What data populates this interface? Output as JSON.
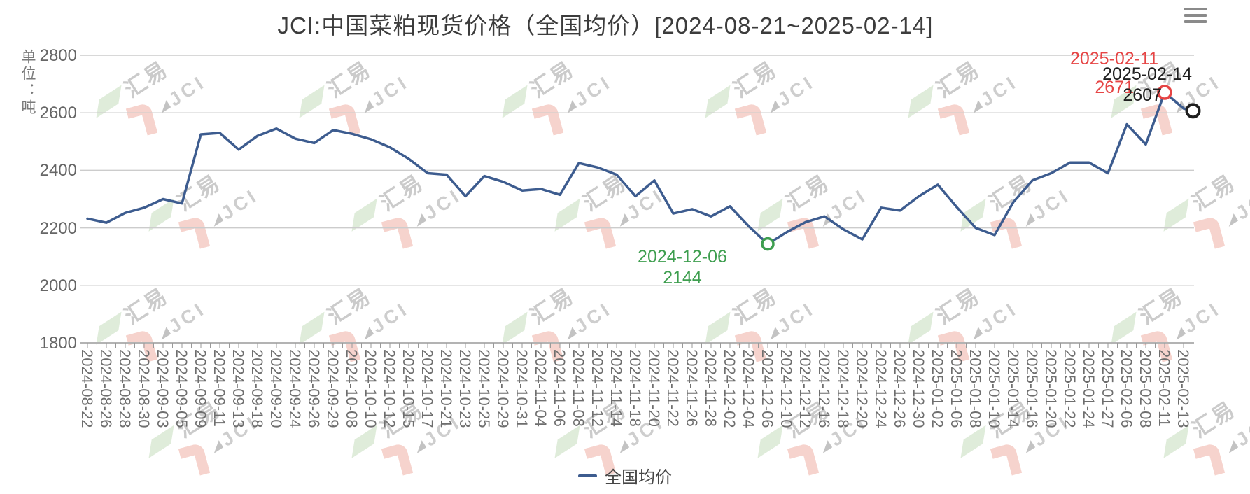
{
  "header": {
    "title": "JCI:中国菜粕现货价格（全国均价）[2024-08-21~2025-02-14]",
    "menu_icon": "hamburger-icon"
  },
  "y_axis": {
    "unit_label": "单位：吨",
    "ticks": [
      2800,
      2600,
      2400,
      2200,
      2000,
      1800
    ]
  },
  "x_axis": {
    "labels": [
      "2024-08-22",
      "2024-08-26",
      "2024-08-28",
      "2024-08-30",
      "2024-09-03",
      "2024-09-05",
      "2024-09-09",
      "2024-09-11",
      "2024-09-13",
      "2024-09-18",
      "2024-09-20",
      "2024-09-24",
      "2024-09-26",
      "2024-09-29",
      "2024-10-08",
      "2024-10-10",
      "2024-10-12",
      "2024-10-15",
      "2024-10-17",
      "2024-10-21",
      "2024-10-23",
      "2024-10-25",
      "2024-10-29",
      "2024-10-31",
      "2024-11-04",
      "2024-11-06",
      "2024-11-08",
      "2024-11-12",
      "2024-11-14",
      "2024-11-18",
      "2024-11-20",
      "2024-11-22",
      "2024-11-26",
      "2024-11-28",
      "2024-12-02",
      "2024-12-04",
      "2024-12-06",
      "2024-12-10",
      "2024-12-12",
      "2024-12-16",
      "2024-12-18",
      "2024-12-20",
      "2024-12-24",
      "2024-12-26",
      "2024-12-30",
      "2025-01-02",
      "2025-01-06",
      "2025-01-08",
      "2025-01-10",
      "2025-01-14",
      "2025-01-16",
      "2025-01-20",
      "2025-01-22",
      "2025-01-24",
      "2025-01-27",
      "2025-02-06",
      "2025-02-08",
      "2025-02-11",
      "2025-02-13"
    ]
  },
  "legend": {
    "items": [
      {
        "label": "全国均价",
        "color": "#3d5c8f"
      }
    ]
  },
  "annotations": {
    "max": {
      "date": "2025-02-11",
      "value": "2671",
      "color": "#e64545"
    },
    "last": {
      "date": "2025-02-14",
      "value": "2607",
      "color": "#1f1f1f"
    },
    "min": {
      "date": "2024-12-06",
      "value": "2144",
      "color": "#3e9e4f"
    }
  },
  "watermark": {
    "text_primary": "汇易",
    "text_secondary": "JCI"
  },
  "colors": {
    "line": "#3d5c8f",
    "grid": "#cccccc",
    "axis": "#b3b3b3",
    "tick": "#9a9a9a"
  },
  "chart_data": {
    "type": "line",
    "title": "JCI:中国菜粕现货价格（全国均价）[2024-08-21~2025-02-14]",
    "ylabel": "单位：吨",
    "ylim": [
      1800,
      2800
    ],
    "y_ticks": [
      1800,
      2000,
      2200,
      2400,
      2600,
      2800
    ],
    "grid": true,
    "legend_position": "bottom",
    "categories": [
      "2024-08-22",
      "2024-08-26",
      "2024-08-28",
      "2024-08-30",
      "2024-09-03",
      "2024-09-05",
      "2024-09-09",
      "2024-09-11",
      "2024-09-13",
      "2024-09-18",
      "2024-09-20",
      "2024-09-24",
      "2024-09-26",
      "2024-09-29",
      "2024-10-08",
      "2024-10-10",
      "2024-10-12",
      "2024-10-15",
      "2024-10-17",
      "2024-10-21",
      "2024-10-23",
      "2024-10-25",
      "2024-10-29",
      "2024-10-31",
      "2024-11-04",
      "2024-11-06",
      "2024-11-08",
      "2024-11-12",
      "2024-11-14",
      "2024-11-18",
      "2024-11-20",
      "2024-11-22",
      "2024-11-26",
      "2024-11-28",
      "2024-12-02",
      "2024-12-04",
      "2024-12-06",
      "2024-12-10",
      "2024-12-12",
      "2024-12-16",
      "2024-12-18",
      "2024-12-20",
      "2024-12-24",
      "2024-12-26",
      "2024-12-30",
      "2025-01-02",
      "2025-01-06",
      "2025-01-08",
      "2025-01-10",
      "2025-01-14",
      "2025-01-16",
      "2025-01-20",
      "2025-01-22",
      "2025-01-24",
      "2025-01-27",
      "2025-02-06",
      "2025-02-08",
      "2025-02-11",
      "2025-02-13"
    ],
    "series": [
      {
        "name": "全国均价",
        "color": "#3d5c8f",
        "values": [
          2232,
          2218,
          2252,
          2270,
          2300,
          2285,
          2525,
          2530,
          2472,
          2520,
          2545,
          2510,
          2495,
          2540,
          2527,
          2508,
          2480,
          2440,
          2390,
          2385,
          2310,
          2380,
          2360,
          2330,
          2335,
          2315,
          2425,
          2410,
          2385,
          2310,
          2365,
          2250,
          2265,
          2240,
          2275,
          2205,
          2144,
          2185,
          2220,
          2240,
          2195,
          2160,
          2270,
          2260,
          2310,
          2350,
          2272,
          2200,
          2175,
          2290,
          2365,
          2390,
          2427,
          2427,
          2390,
          2560,
          2490,
          2671,
          2615
        ],
        "end_point": {
          "date": "2025-02-14",
          "value": 2607
        }
      }
    ],
    "marked_points": [
      {
        "date": "2024-12-06",
        "value": 2144,
        "role": "min",
        "color": "#3e9e4f"
      },
      {
        "date": "2025-02-11",
        "value": 2671,
        "role": "max",
        "color": "#e64545"
      },
      {
        "date": "2025-02-14",
        "value": 2607,
        "role": "last",
        "color": "#1f1f1f"
      }
    ]
  }
}
